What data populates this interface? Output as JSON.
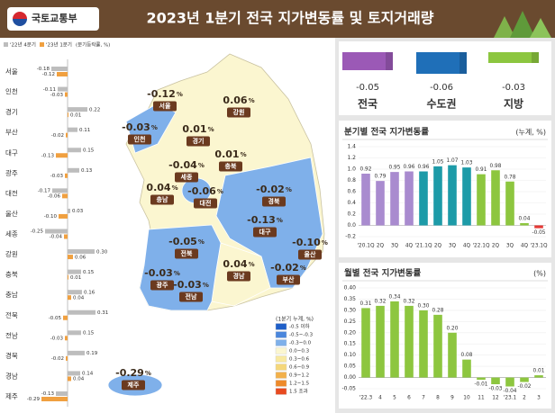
{
  "header": {
    "logo_text": "국토교통부",
    "title": "2023년 1분기 전국 지가변동률 및 토지거래량"
  },
  "chart_data": [
    {
      "type": "hbar",
      "unit": "(분기등락률, %)",
      "categories": [
        "서울",
        "인천",
        "경기",
        "부산",
        "대구",
        "광주",
        "대전",
        "울산",
        "세종",
        "강원",
        "충북",
        "충남",
        "전북",
        "전남",
        "경북",
        "경남",
        "제주"
      ],
      "series": [
        {
          "name": "'22년 4분기",
          "color": "#bdbdbd",
          "values": [
            -0.18,
            -0.11,
            0.22,
            0.11,
            0.15,
            0.13,
            -0.17,
            0.03,
            -0.25,
            0.3,
            0.15,
            0.16,
            0.31,
            0.15,
            0.19,
            0.14,
            -0.13
          ],
          "value_labels": [
            "-0.18",
            "-0.11",
            "0.22",
            "0.11",
            "0.15",
            "0.13",
            "-0.17",
            "0.03",
            "-0.25",
            "0.30",
            "0.15",
            "0.16",
            "0.31",
            "0.15",
            "0.19",
            "0.14",
            "-0.13"
          ]
        },
        {
          "name": "'23년 1분기",
          "color": "#f0a040",
          "values": [
            -0.12,
            -0.03,
            0.01,
            -0.02,
            -0.13,
            -0.03,
            -0.06,
            -0.1,
            -0.04,
            0.06,
            0.01,
            0.04,
            -0.05,
            -0.03,
            -0.02,
            0.04,
            -0.29
          ],
          "value_labels": [
            "-0.12",
            "-0.03",
            "0.01",
            "-0.02",
            "-0.13",
            "-0.03",
            "-0.06",
            "-0.10",
            "-0.04",
            "0.06",
            "0.01",
            "0.04",
            "-0.05",
            "-0.03",
            "-0.02",
            "0.04",
            "-0.29"
          ]
        }
      ],
      "xlim": [
        -0.4,
        0.4
      ]
    },
    {
      "type": "block",
      "categories": [
        "전국",
        "수도권",
        "지방"
      ],
      "values": [
        -0.05,
        -0.06,
        -0.03
      ],
      "colors": [
        "#9b59b6",
        "#1f6fb8",
        "#8cc63f"
      ],
      "ylim": [
        -0.08,
        0
      ]
    },
    {
      "type": "bar",
      "title": "분기별 전국 지가변동률",
      "unit": "(누계, %)",
      "categories": [
        "'20.1Q",
        "2Q",
        "3Q",
        "4Q",
        "'21.1Q",
        "2Q",
        "3Q",
        "4Q",
        "'22.1Q",
        "2Q",
        "3Q",
        "4Q",
        "'23.1Q"
      ],
      "values": [
        0.92,
        0.79,
        0.95,
        0.96,
        0.96,
        1.05,
        1.07,
        1.03,
        0.91,
        0.98,
        0.78,
        0.04,
        -0.05
      ],
      "colors": [
        "#a98bcf",
        "#a98bcf",
        "#a98bcf",
        "#a98bcf",
        "#1d9ba8",
        "#1d9ba8",
        "#1d9ba8",
        "#1d9ba8",
        "#8dc63f",
        "#8dc63f",
        "#8dc63f",
        "#8dc63f",
        "#e53935"
      ],
      "ylim": [
        -0.2,
        1.4
      ],
      "yticks": [
        -0.2,
        {
          "value": 0,
          "label": "0.0"
        },
        0.2,
        0.4,
        0.6,
        0.8,
        {
          "value": 1,
          "label": "1.0"
        },
        1.2,
        1.4
      ]
    },
    {
      "type": "bar",
      "title": "월별 전국 지가변동률",
      "unit": "(%)",
      "categories": [
        "'22.3",
        "4",
        "5",
        "6",
        "7",
        "8",
        "9",
        "10",
        "11",
        "12",
        "'23.1",
        "2",
        "3"
      ],
      "values": [
        0.31,
        0.32,
        0.34,
        0.32,
        0.3,
        0.28,
        0.2,
        0.08,
        -0.01,
        -0.03,
        -0.04,
        -0.02,
        0.01
      ],
      "value_labels": [
        "0.31",
        "0.32",
        "0.34",
        "0.32",
        "0.30",
        "0.28",
        "0.20",
        "0.08",
        "-0.01",
        "-0.03",
        "-0.04",
        "-0.02",
        "0.01"
      ],
      "color": "#8dc63f",
      "ylim": [
        -0.05,
        0.4
      ],
      "yticks": [
        -0.05,
        {
          "value": 0,
          "label": "0.00"
        },
        0.05,
        {
          "value": 0.1,
          "label": "0.10"
        },
        0.15,
        {
          "value": 0.2,
          "label": "0.20"
        },
        0.25,
        {
          "value": 0.3,
          "label": "0.30"
        },
        0.35,
        {
          "value": 0.4,
          "label": "0.40"
        }
      ]
    }
  ],
  "map": {
    "unit": "%",
    "legend_title": "(1분기 누계, %)",
    "legend": [
      {
        "label": "-0.5 이하",
        "color": "#1f5fc8"
      },
      {
        "label": "-0.5~-0.3",
        "color": "#4a86dc"
      },
      {
        "label": "-0.3~0.0",
        "color": "#7fb0ea"
      },
      {
        "label": "0.0~0.3",
        "color": "#fbf6d0"
      },
      {
        "label": "0.3~0.6",
        "color": "#f8e9a0"
      },
      {
        "label": "0.6~0.9",
        "color": "#f5d77a"
      },
      {
        "label": "0.9~1.2",
        "color": "#f2b04a"
      },
      {
        "label": "1.2~1.5",
        "color": "#ee8a2a"
      },
      {
        "label": "1.5 초과",
        "color": "#e84a20"
      }
    ]
  }
}
